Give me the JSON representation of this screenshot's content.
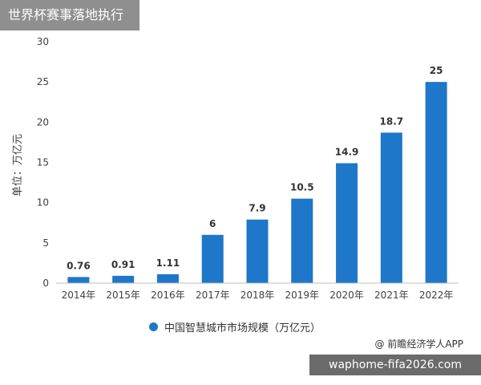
{
  "header": {
    "badge": "世界杯赛事落地执行"
  },
  "chart_data": {
    "type": "bar",
    "categories": [
      "2014年",
      "2015年",
      "2016年",
      "2017年",
      "2018年",
      "2019年",
      "2020年",
      "2021年",
      "2022年"
    ],
    "values": [
      0.76,
      0.91,
      1.11,
      6,
      7.9,
      10.5,
      14.9,
      18.7,
      25
    ],
    "value_labels": [
      "0.76",
      "0.91",
      "1.11",
      "6",
      "7.9",
      "10.5",
      "14.9",
      "18.7",
      "25"
    ],
    "ylabel": "单位：万亿元",
    "ylim": [
      0,
      30
    ],
    "yticks": [
      "0",
      "5",
      "10",
      "15",
      "20",
      "25",
      "30"
    ],
    "legend": "中国智慧城市市场规模（万亿元）",
    "legend_position": "bottom",
    "bar_color": "#1e77c8",
    "grid": false
  },
  "source": "@ 前瞻经济学人APP",
  "footer": {
    "text": "waphome-fifa2026.com"
  }
}
